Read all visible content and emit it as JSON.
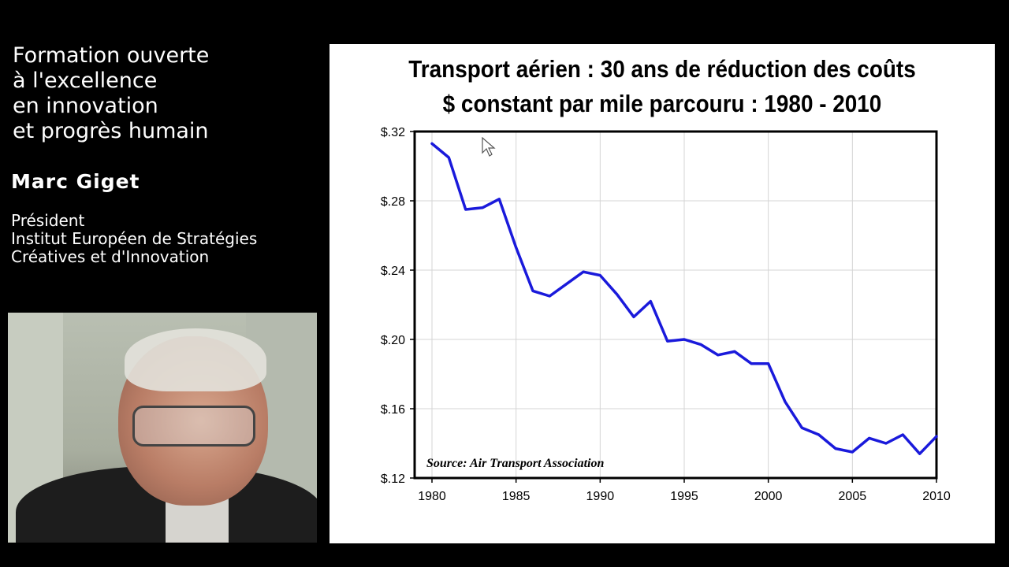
{
  "sidebar": {
    "course_title_lines": [
      "Formation ouverte",
      "à l'excellence",
      "en innovation",
      "et progrès humain"
    ],
    "presenter_name": "Marc Giget",
    "presenter_role_lines": [
      "Président",
      "Institut Européen de Stratégies",
      "Créatives et d'Innovation"
    ]
  },
  "slide": {
    "title_lines": [
      "Transport aérien : 30 ans de réduction des coûts",
      "$ constant par mile parcouru : 1980 - 2010"
    ]
  },
  "colors": {
    "line": "#1a1adb",
    "background": "#000000",
    "slide_bg": "#ffffff"
  },
  "chart_data": {
    "type": "line",
    "title": "Transport aérien : 30 ans de réduction des coûts",
    "subtitle": "$ constant par mile parcouru : 1980 - 2010",
    "xlabel": "",
    "ylabel": "",
    "annotation": "Source: Air Transport Association",
    "x": [
      1980,
      1981,
      1982,
      1983,
      1984,
      1985,
      1986,
      1987,
      1988,
      1989,
      1990,
      1991,
      1992,
      1993,
      1994,
      1995,
      1996,
      1997,
      1998,
      1999,
      2000,
      2001,
      2002,
      2003,
      2004,
      2005,
      2006,
      2007,
      2008,
      2009,
      2010
    ],
    "series": [
      {
        "values": [
          0.313,
          0.305,
          0.275,
          0.276,
          0.281,
          0.253,
          0.228,
          0.225,
          0.232,
          0.239,
          0.237,
          0.226,
          0.213,
          0.222,
          0.199,
          0.2,
          0.197,
          0.191,
          0.193,
          0.186,
          0.186,
          0.164,
          0.149,
          0.145,
          0.137,
          0.135,
          0.143,
          0.14,
          0.145,
          0.134,
          0.144
        ]
      }
    ],
    "xlim": [
      1980,
      2010
    ],
    "ylim": [
      0.12,
      0.32
    ],
    "xticks": [
      1980,
      1985,
      1990,
      1995,
      2000,
      2005,
      2010
    ],
    "yticks": [
      0.12,
      0.16,
      0.2,
      0.24,
      0.28,
      0.32
    ],
    "ytick_labels": [
      "$.12",
      "$.16",
      "$.20",
      "$.24",
      "$.28",
      "$.32"
    ],
    "grid": true
  }
}
